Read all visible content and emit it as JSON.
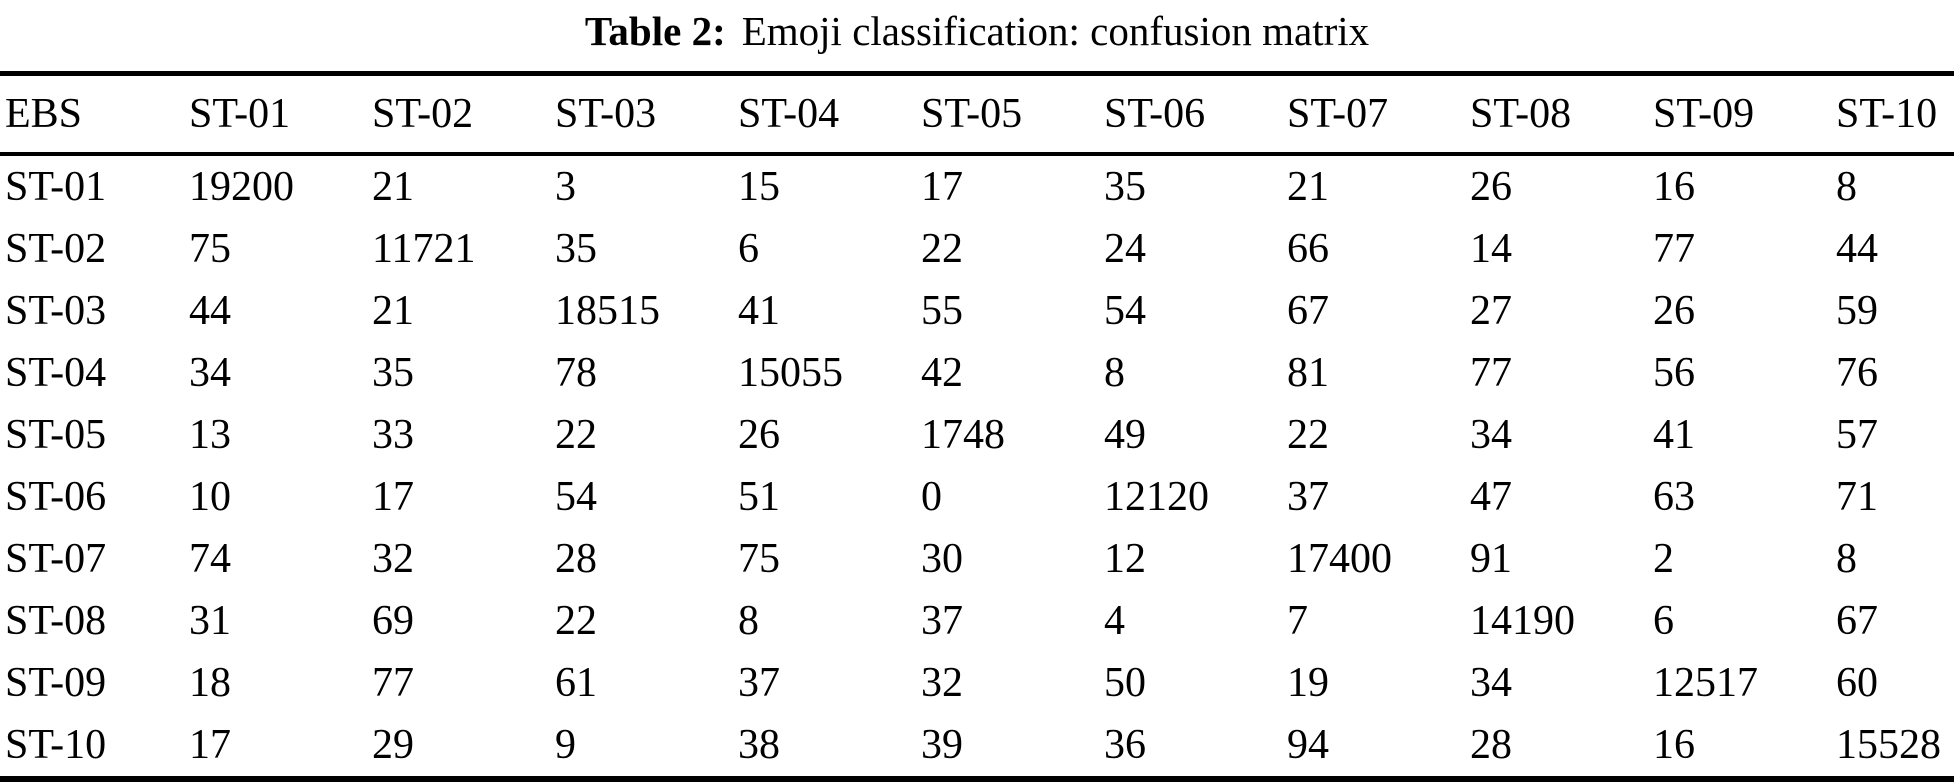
{
  "caption": {
    "label": "Table 2:",
    "text": "Emoji classification: confusion matrix"
  },
  "table": {
    "header": [
      "EBS",
      "ST-01",
      "ST-02",
      "ST-03",
      "ST-04",
      "ST-05",
      "ST-06",
      "ST-07",
      "ST-08",
      "ST-09",
      "ST-10"
    ],
    "rows": [
      {
        "label": "ST-01",
        "values": [
          "19200",
          "21",
          "3",
          "15",
          "17",
          "35",
          "21",
          "26",
          "16",
          "8"
        ]
      },
      {
        "label": "ST-02",
        "values": [
          "75",
          "11721",
          "35",
          "6",
          "22",
          "24",
          "66",
          "14",
          "77",
          "44"
        ]
      },
      {
        "label": "ST-03",
        "values": [
          "44",
          "21",
          "18515",
          "41",
          "55",
          "54",
          "67",
          "27",
          "26",
          "59"
        ]
      },
      {
        "label": "ST-04",
        "values": [
          "34",
          "35",
          "78",
          "15055",
          "42",
          "8",
          "81",
          "77",
          "56",
          "76"
        ]
      },
      {
        "label": "ST-05",
        "values": [
          "13",
          "33",
          "22",
          "26",
          "1748",
          "49",
          "22",
          "34",
          "41",
          "57"
        ]
      },
      {
        "label": "ST-06",
        "values": [
          "10",
          "17",
          "54",
          "51",
          "0",
          "12120",
          "37",
          "47",
          "63",
          "71"
        ]
      },
      {
        "label": "ST-07",
        "values": [
          "74",
          "32",
          "28",
          "75",
          "30",
          "12",
          "17400",
          "91",
          "2",
          "8"
        ]
      },
      {
        "label": "ST-08",
        "values": [
          "31",
          "69",
          "22",
          "8",
          "37",
          "4",
          "7",
          "14190",
          "6",
          "67"
        ]
      },
      {
        "label": "ST-09",
        "values": [
          "18",
          "77",
          "61",
          "37",
          "32",
          "50",
          "19",
          "34",
          "12517",
          "60"
        ]
      },
      {
        "label": "ST-10",
        "values": [
          "17",
          "29",
          "9",
          "38",
          "39",
          "36",
          "94",
          "28",
          "16",
          "15528"
        ]
      }
    ]
  },
  "colors": {
    "text": "#000000",
    "background": "#ffffff",
    "rule": "#000000"
  }
}
